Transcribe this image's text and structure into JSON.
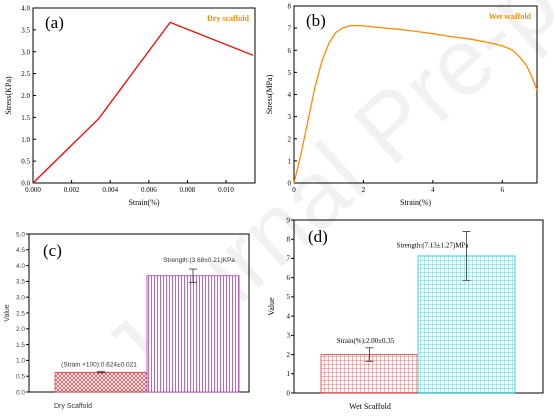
{
  "watermark": "Journal Pre-proof",
  "chart_data": [
    {
      "id": "a",
      "type": "line",
      "panel_label": "(a)",
      "legend": "Dry scaffold",
      "xlabel": "Strain(%)",
      "ylabel": "Stress(KPa)",
      "xlim": [
        0,
        0.0115
      ],
      "ylim": [
        0,
        4.0
      ],
      "xticks": [
        "0.000",
        "0.002",
        "0.004",
        "0.006",
        "0.008",
        "0.010"
      ],
      "yticks": [
        "0.0",
        "0.5",
        "1.0",
        "1.5",
        "2.0",
        "2.5",
        "3.0",
        "3.5",
        "4.0"
      ],
      "line_color": "#ff0000",
      "series": [
        {
          "x": [
            0.0,
            0.0034,
            0.0071,
            0.0114
          ],
          "y": [
            0.0,
            1.47,
            3.67,
            2.92
          ]
        }
      ]
    },
    {
      "id": "b",
      "type": "line",
      "panel_label": "(b)",
      "legend": "Wet scaffold",
      "xlabel": "Strain(%)",
      "ylabel": "Stress(MPa)",
      "xlim": [
        0,
        7
      ],
      "ylim": [
        0,
        8
      ],
      "xticks": [
        "0",
        "2",
        "4",
        "6"
      ],
      "yticks": [
        "0",
        "1",
        "2",
        "3",
        "4",
        "5",
        "6",
        "7",
        "8"
      ],
      "line_color": "#ff8c00",
      "series": [
        {
          "x": [
            0.0,
            0.2,
            0.4,
            0.6,
            0.8,
            1.0,
            1.2,
            1.4,
            1.6,
            1.8,
            2.0,
            2.5,
            3.0,
            3.5,
            4.0,
            4.5,
            5.0,
            5.5,
            6.0,
            6.3,
            6.5,
            6.7,
            6.85,
            7.0
          ],
          "y": [
            0.0,
            1.3,
            2.8,
            4.3,
            5.5,
            6.3,
            6.8,
            7.0,
            7.1,
            7.12,
            7.1,
            7.02,
            6.95,
            6.85,
            6.75,
            6.62,
            6.52,
            6.38,
            6.2,
            6.0,
            5.7,
            5.3,
            4.8,
            4.2
          ]
        }
      ]
    },
    {
      "id": "c",
      "type": "bar",
      "panel_label": "(c)",
      "xlabel": "Dry Scaffold",
      "ylabel": "Value",
      "ylim": [
        0,
        5.0
      ],
      "yticks": [
        "0.0",
        "0.5",
        "1.0",
        "1.5",
        "2.0",
        "2.5",
        "3.0",
        "3.5",
        "4.0",
        "4.5",
        "5.0"
      ],
      "bars": [
        {
          "value": 0.624,
          "error": 0.021,
          "color": "#e23b3b",
          "pattern": "cross",
          "label": "(Strain ×100):0.624±0.021"
        },
        {
          "value": 3.68,
          "error": 0.21,
          "color": "#b03db8",
          "pattern": "vlines",
          "label": "Strength:(3.68±0.21)KPa"
        }
      ]
    },
    {
      "id": "d",
      "type": "bar",
      "panel_label": "(d)",
      "xlabel": "Wet Scaffold",
      "ylabel": "Value",
      "ylim": [
        0,
        9
      ],
      "yticks": [
        "0",
        "1",
        "2",
        "3",
        "4",
        "5",
        "6",
        "7",
        "8",
        "9"
      ],
      "bars": [
        {
          "value": 2.0,
          "error": 0.35,
          "color": "#e23b3b",
          "pattern": "grid",
          "label": "Strain(%):2.00±0.35"
        },
        {
          "value": 7.13,
          "error": 1.27,
          "color": "#1ec8d8",
          "pattern": "grid",
          "label": "Strength:(7.13±1.27)MPa"
        }
      ]
    }
  ]
}
